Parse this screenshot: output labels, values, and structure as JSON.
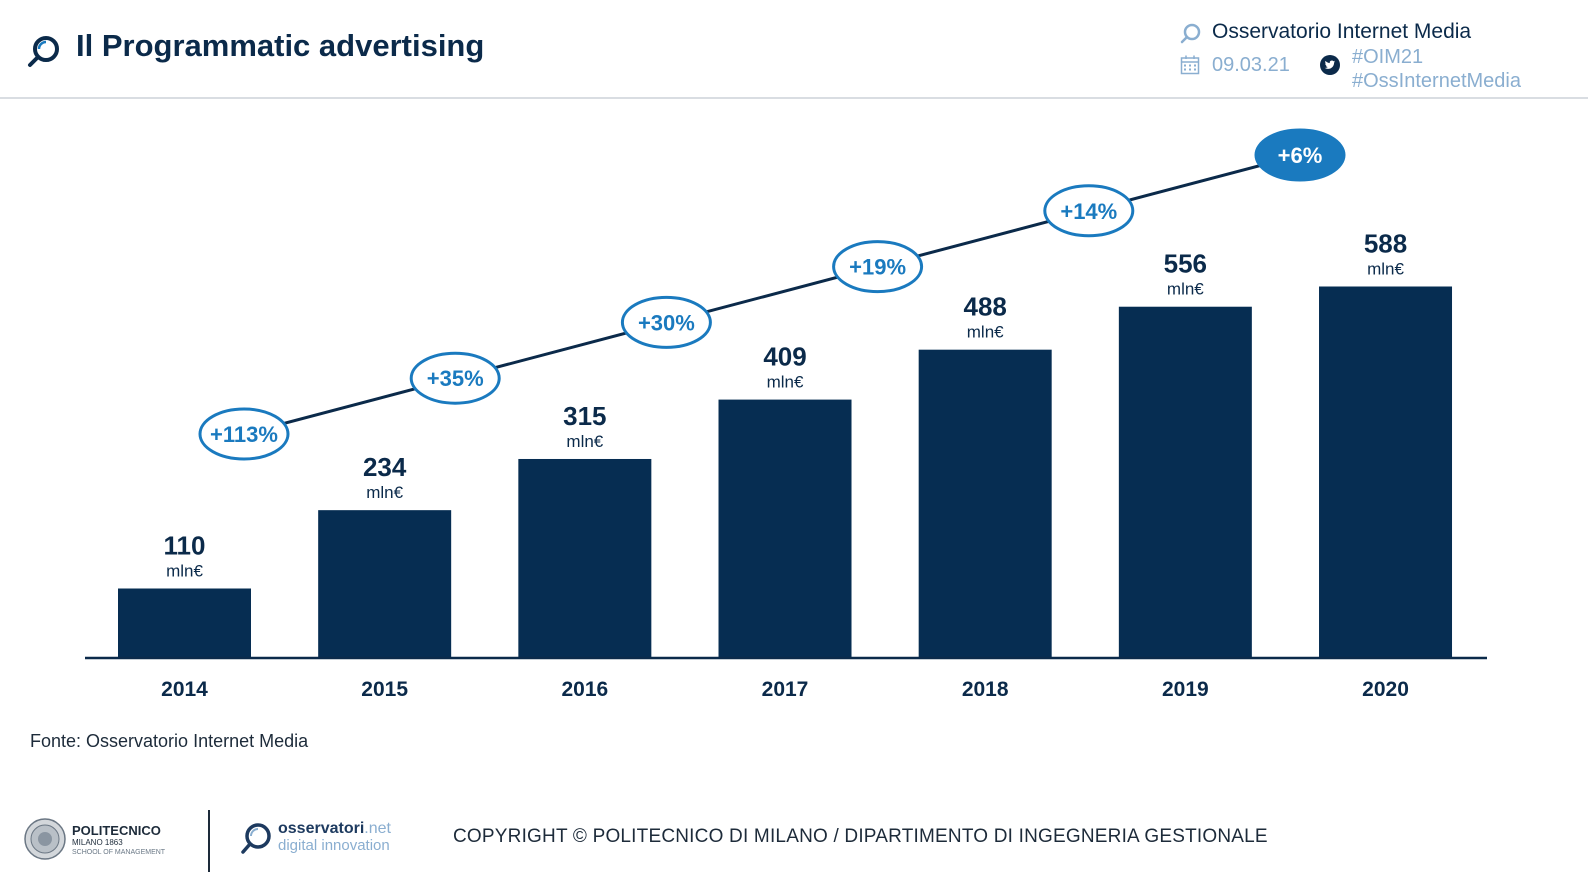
{
  "header": {
    "title": "Il Programmatic advertising",
    "observatory": "Osservatorio Internet Media",
    "date": "09.03.21",
    "hashtag1": "#OIM21",
    "hashtag2": "#OssInternetMedia",
    "icons": [
      "search-icon",
      "calendar-icon",
      "twitter-icon"
    ]
  },
  "chart_data": {
    "type": "bar",
    "categories": [
      "2014",
      "2015",
      "2016",
      "2017",
      "2018",
      "2019",
      "2020"
    ],
    "values": [
      110,
      234,
      315,
      409,
      488,
      556,
      588
    ],
    "value_labels": [
      "110",
      "234",
      "315",
      "409",
      "488",
      "556",
      "588"
    ],
    "unit": "mln€",
    "growth_labels": [
      "+113%",
      "+35%",
      "+30%",
      "+19%",
      "+14%",
      "+6%"
    ],
    "title": "",
    "xlabel": "",
    "ylabel": "",
    "ylim": [
      0,
      650
    ],
    "grid": false,
    "colors": {
      "bar": "#062d52",
      "accent": "#1a7abf",
      "highlight_fill": "#1a7abf"
    }
  },
  "source": "Fonte: Osservatorio Internet Media",
  "footer": {
    "poli_name": "POLITECNICO",
    "poli_city": "MILANO 1863",
    "poli_school": "SCHOOL OF MANAGEMENT",
    "obs_net_main": "osservatori",
    "obs_net_suffix": ".net",
    "obs_net_sub": "digital innovation",
    "copyright": "COPYRIGHT © POLITECNICO DI MILANO / DIPARTIMENTO DI INGEGNERIA GESTIONALE"
  }
}
